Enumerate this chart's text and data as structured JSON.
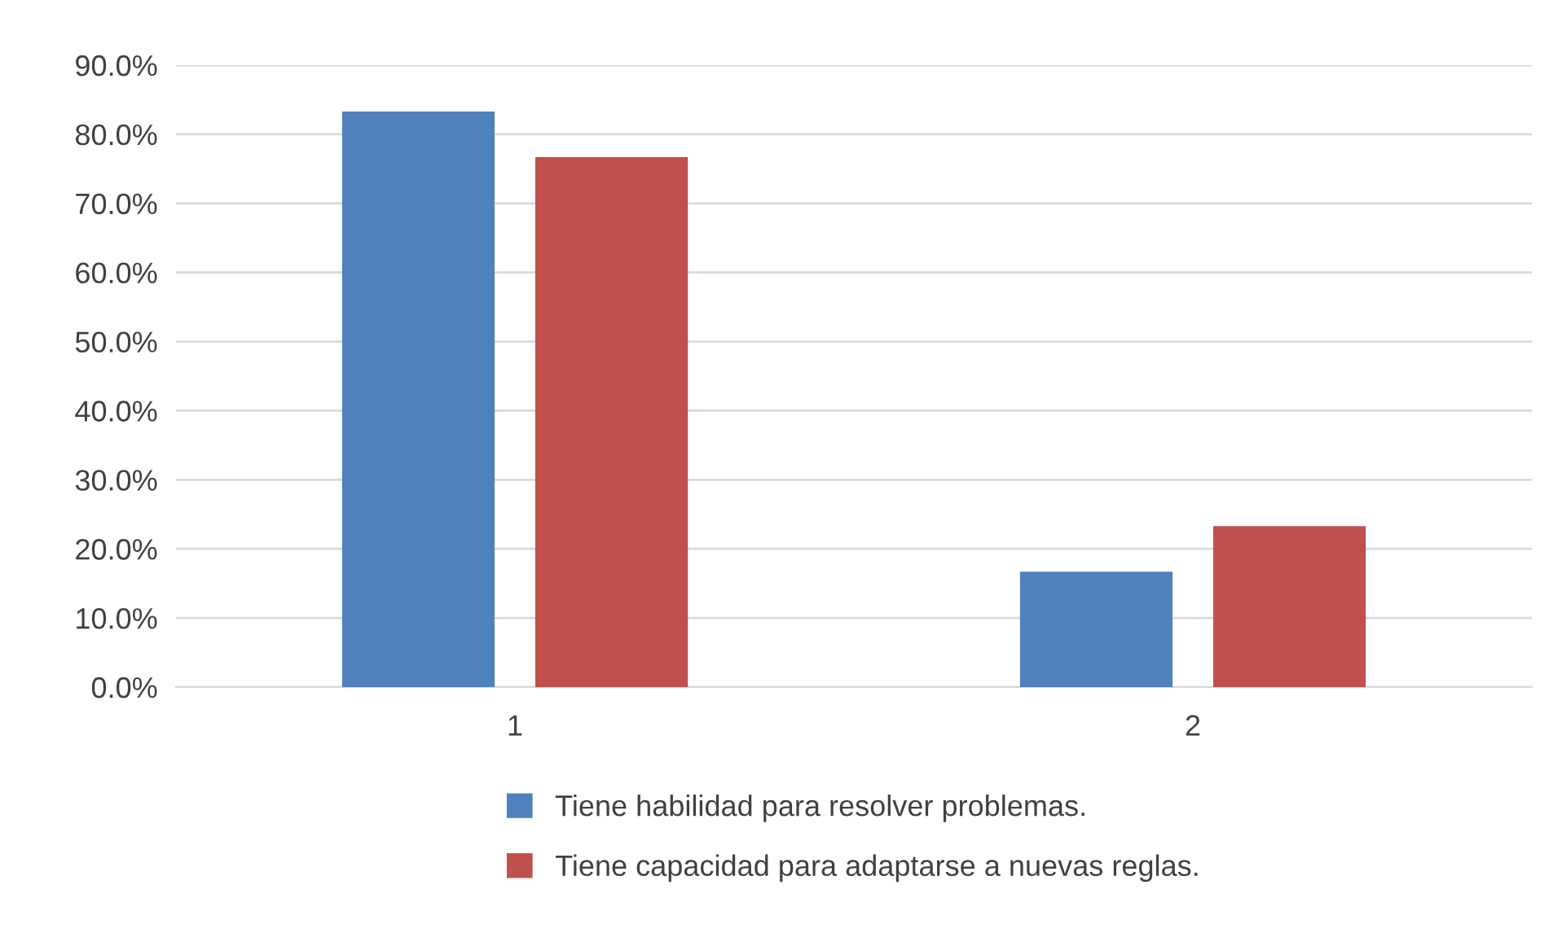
{
  "chart_data": {
    "type": "bar",
    "categories": [
      "1",
      "2"
    ],
    "series": [
      {
        "name": "Tiene habilidad para resolver problemas.",
        "color": "#4f81bd",
        "values": [
          83.3,
          16.7
        ]
      },
      {
        "name": "Tiene capacidad para adaptarse a nuevas reglas.",
        "color": "#c0504d",
        "values": [
          76.7,
          23.3
        ]
      }
    ],
    "ylim": [
      0,
      90
    ],
    "yticks": [
      {
        "value": 0,
        "label": "0.0%"
      },
      {
        "value": 10,
        "label": "10.0%"
      },
      {
        "value": 20,
        "label": "20.0%"
      },
      {
        "value": 30,
        "label": "30.0%"
      },
      {
        "value": 40,
        "label": "40.0%"
      },
      {
        "value": 50,
        "label": "50.0%"
      },
      {
        "value": 60,
        "label": "60.0%"
      },
      {
        "value": 70,
        "label": "70.0%"
      },
      {
        "value": 80,
        "label": "80.0%"
      },
      {
        "value": 90,
        "label": "90.0%"
      }
    ],
    "grid": "y",
    "legend": "bottom"
  }
}
